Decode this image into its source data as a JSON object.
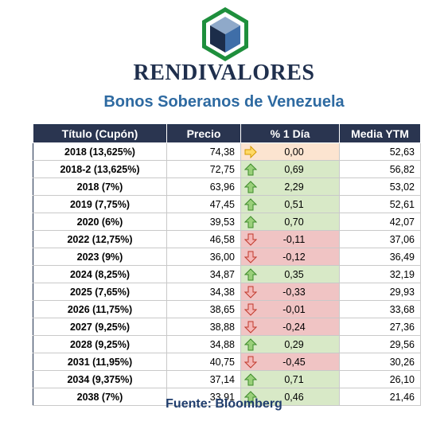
{
  "brand": "RENDIVALORES",
  "subtitle": "Bonos Soberanos de Venezuela",
  "table": {
    "headers": [
      "Título (Cupón)",
      "Precio",
      "% 1 Día",
      "Media YTM"
    ],
    "rows": [
      {
        "title": "2018 (13,625%)",
        "price": "74,38",
        "change": "0,00",
        "trend": "flat",
        "ytm": "52,63"
      },
      {
        "title": "2018-2 (13,625%)",
        "price": "72,75",
        "change": "0,69",
        "trend": "up",
        "ytm": "56,82"
      },
      {
        "title": "2018 (7%)",
        "price": "63,96",
        "change": "2,29",
        "trend": "up",
        "ytm": "53,02"
      },
      {
        "title": "2019 (7,75%)",
        "price": "47,45",
        "change": "0,51",
        "trend": "up",
        "ytm": "52,61"
      },
      {
        "title": "2020 (6%)",
        "price": "39,53",
        "change": "0,70",
        "trend": "up",
        "ytm": "42,07"
      },
      {
        "title": "2022 (12,75%)",
        "price": "46,58",
        "change": "-0,11",
        "trend": "down",
        "ytm": "37,06"
      },
      {
        "title": "2023 (9%)",
        "price": "36,00",
        "change": "-0,12",
        "trend": "down",
        "ytm": "36,49"
      },
      {
        "title": "2024 (8,25%)",
        "price": "34,87",
        "change": "0,35",
        "trend": "up",
        "ytm": "32,19"
      },
      {
        "title": "2025 (7,65%)",
        "price": "34,38",
        "change": "-0,33",
        "trend": "down",
        "ytm": "29,93"
      },
      {
        "title": "2026 (11,75%)",
        "price": "38,65",
        "change": "-0,01",
        "trend": "down",
        "ytm": "33,68"
      },
      {
        "title": "2027 (9,25%)",
        "price": "38,88",
        "change": "-0,24",
        "trend": "down",
        "ytm": "27,36"
      },
      {
        "title": "2028 (9,25%)",
        "price": "34,88",
        "change": "0,29",
        "trend": "up",
        "ytm": "29,56"
      },
      {
        "title": "2031 (11,95%)",
        "price": "40,75",
        "change": "-0,45",
        "trend": "down",
        "ytm": "30,26"
      },
      {
        "title": "2034 (9,375%)",
        "price": "37,14",
        "change": "0,71",
        "trend": "up",
        "ytm": "26,10"
      },
      {
        "title": "2038 (7%)",
        "price": "33,91",
        "change": "0,46",
        "trend": "up",
        "ytm": "21,46"
      }
    ]
  },
  "source": "Fuente: Bloomberg",
  "icons": {
    "logo": "cube-logo-icon",
    "up": "arrow-up-icon",
    "down": "arrow-down-icon",
    "flat": "arrow-right-icon"
  },
  "colors": {
    "header_bg": "#2a3550",
    "up_bg": "#d8e9c7",
    "down_bg": "#f0c4c4",
    "flat_bg": "#fce4d0",
    "subtitle": "#2e6aa1"
  }
}
